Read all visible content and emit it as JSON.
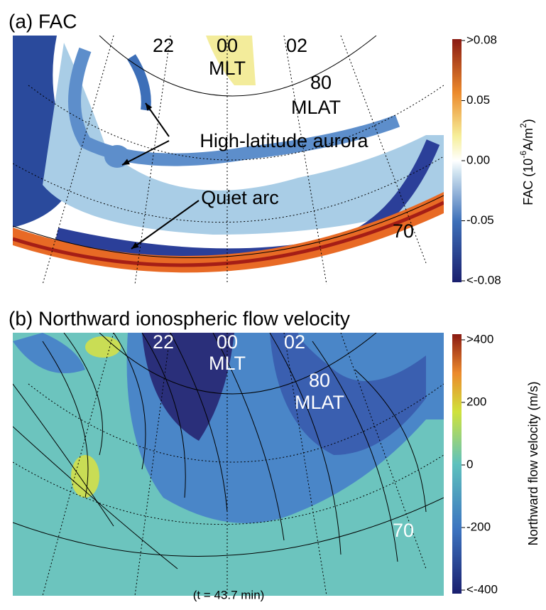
{
  "panel_a": {
    "title": "(a) FAC",
    "labels": {
      "mlt_22": "22",
      "mlt_00": "00",
      "mlt_02": "02",
      "mlt": "MLT",
      "mlat_80": "80",
      "mlat": "MLAT",
      "aurora": "High-latitude aurora",
      "arc": "Quiet arc",
      "mlat_70": "70"
    },
    "colorbar": {
      "ticks": [
        ">0.08",
        "0.05",
        "0.00",
        "-0.05",
        "<-0.08"
      ],
      "label_parts": [
        "FAC (10",
        "-6",
        "A/m",
        "2",
        ")"
      ]
    }
  },
  "panel_b": {
    "title": "(b) Northward ionospheric flow velocity",
    "labels": {
      "mlt_22": "22",
      "mlt_00": "00",
      "mlt_02": "02",
      "mlt": "MLT",
      "mlat_80": "80",
      "mlat": "MLAT",
      "mlat_70": "70"
    },
    "colorbar": {
      "ticks": [
        ">400",
        "200",
        "0",
        "-200",
        "<-400"
      ],
      "label": "Northward flow velocity (m/s)"
    }
  },
  "caption": "(t = 43.7 min)"
}
